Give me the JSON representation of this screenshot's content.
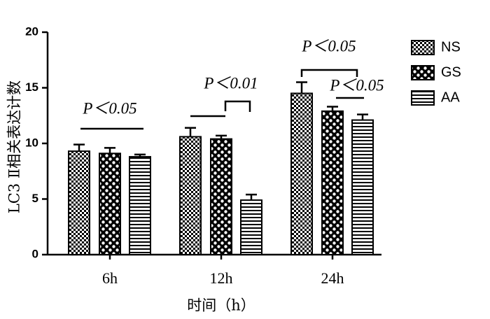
{
  "chart_data": {
    "type": "bar",
    "y_label": "LC3 Ⅱ相关表达计数",
    "x_label": "时间（h）",
    "categories": [
      "6h",
      "12h",
      "24h"
    ],
    "series": [
      {
        "name": "NS",
        "color": "#000000",
        "values": [
          9.3,
          10.6,
          14.5
        ],
        "errors": [
          0.6,
          0.8,
          1.0
        ]
      },
      {
        "name": "GS",
        "color": "#000000",
        "values": [
          9.1,
          10.4,
          12.9
        ],
        "errors": [
          0.5,
          0.3,
          0.4
        ]
      },
      {
        "name": "AA",
        "color": "#000000",
        "values": [
          8.8,
          4.9,
          12.1
        ],
        "errors": [
          0.2,
          0.5,
          0.5
        ]
      }
    ],
    "ylim": [
      0,
      20
    ],
    "yticks": [
      0,
      5,
      10,
      15,
      20
    ],
    "annotations": [
      "P＜0.05",
      "P＜0.01",
      "P＜0.05",
      "P＜0.05"
    ]
  }
}
